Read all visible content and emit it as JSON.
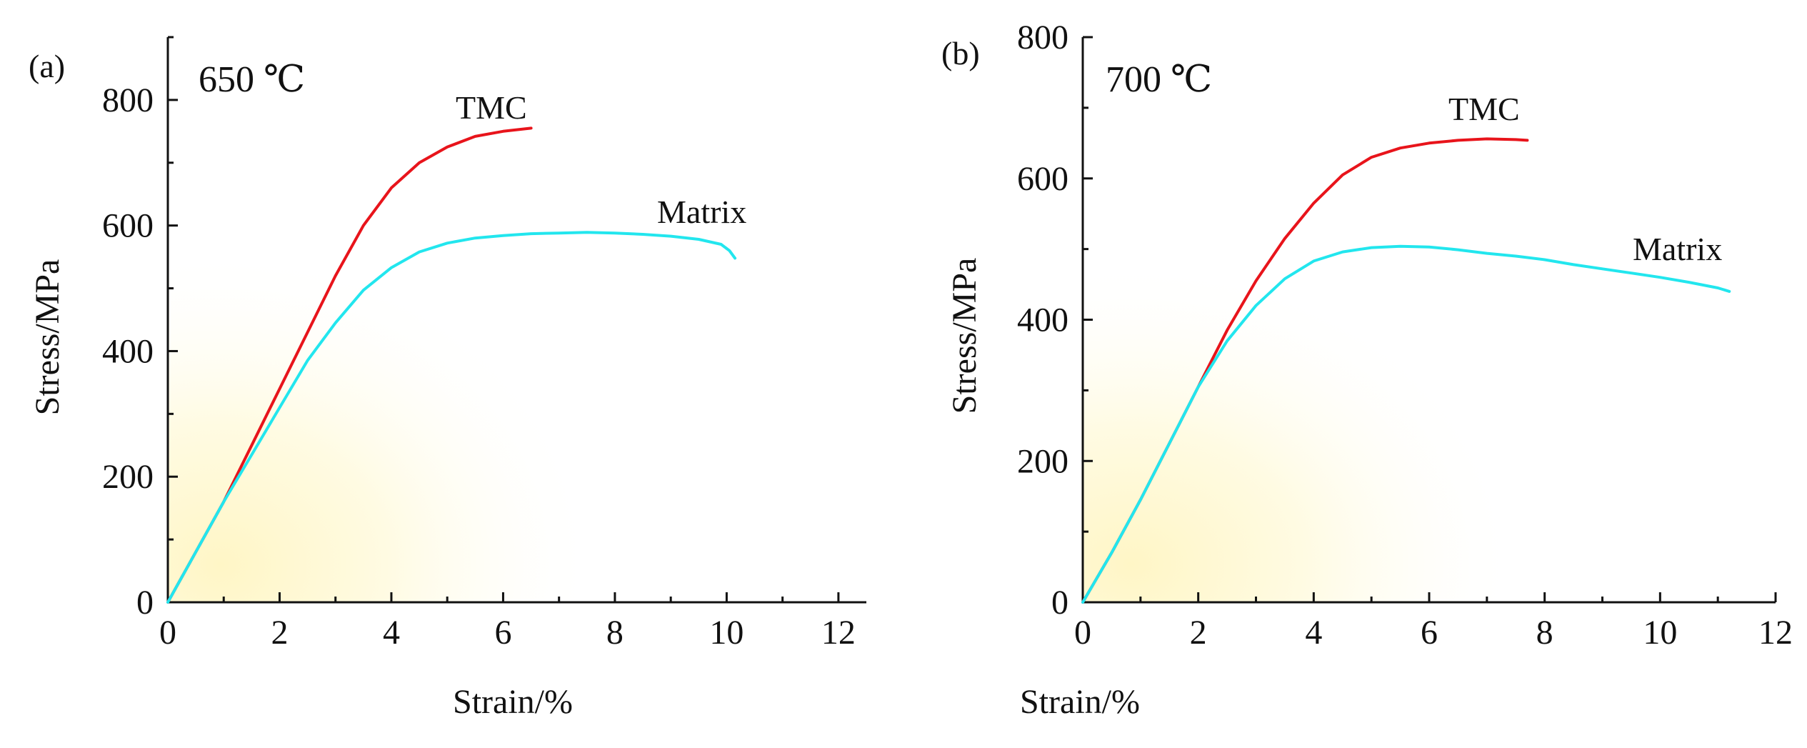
{
  "chart_data": [
    {
      "type": "line",
      "panel": "(a)",
      "annotation": "650 ℃",
      "xlabel": "Strain/%",
      "ylabel": "Stress/MPa",
      "xlim": [
        0,
        12.5
      ],
      "ylim": [
        0,
        900
      ],
      "xticks": [
        0,
        2,
        4,
        6,
        8,
        10,
        12
      ],
      "yticks": [
        0,
        200,
        400,
        600,
        800
      ],
      "series": [
        {
          "name": "TMC",
          "color": "#e8141b",
          "points": [
            [
              0,
              0
            ],
            [
              0.5,
              80
            ],
            [
              1.0,
              160
            ],
            [
              1.5,
              250
            ],
            [
              2.0,
              340
            ],
            [
              2.5,
              430
            ],
            [
              3.0,
              520
            ],
            [
              3.5,
              600
            ],
            [
              4.0,
              660
            ],
            [
              4.5,
              700
            ],
            [
              5.0,
              725
            ],
            [
              5.5,
              742
            ],
            [
              6.0,
              750
            ],
            [
              6.5,
              755
            ]
          ]
        },
        {
          "name": "Matrix",
          "color": "#22e6ee",
          "points": [
            [
              0,
              0
            ],
            [
              0.5,
              80
            ],
            [
              1.0,
              160
            ],
            [
              1.5,
              235
            ],
            [
              2.0,
              310
            ],
            [
              2.5,
              385
            ],
            [
              3.0,
              445
            ],
            [
              3.5,
              497
            ],
            [
              4.0,
              533
            ],
            [
              4.5,
              558
            ],
            [
              5.0,
              572
            ],
            [
              5.5,
              580
            ],
            [
              6.0,
              584
            ],
            [
              6.5,
              587
            ],
            [
              7.0,
              588
            ],
            [
              7.5,
              589
            ],
            [
              8.0,
              588
            ],
            [
              8.5,
              586
            ],
            [
              9.0,
              583
            ],
            [
              9.5,
              578
            ],
            [
              9.9,
              570
            ],
            [
              10.05,
              560
            ],
            [
              10.15,
              548
            ]
          ]
        }
      ]
    },
    {
      "type": "line",
      "panel": "(b)",
      "annotation": "700 ℃",
      "xlabel": "Strain/%",
      "ylabel": "Stress/MPa",
      "xlim": [
        0,
        12
      ],
      "ylim": [
        0,
        800
      ],
      "xticks": [
        0,
        2,
        4,
        6,
        8,
        10,
        12
      ],
      "yticks": [
        0,
        200,
        400,
        600,
        800
      ],
      "series": [
        {
          "name": "TMC",
          "color": "#e8141b",
          "points": [
            [
              0,
              0
            ],
            [
              0.5,
              70
            ],
            [
              1.0,
              145
            ],
            [
              1.5,
              225
            ],
            [
              2.0,
              305
            ],
            [
              2.5,
              385
            ],
            [
              3.0,
              455
            ],
            [
              3.5,
              515
            ],
            [
              4.0,
              565
            ],
            [
              4.5,
              605
            ],
            [
              5.0,
              630
            ],
            [
              5.5,
              643
            ],
            [
              6.0,
              650
            ],
            [
              6.5,
              654
            ],
            [
              7.0,
              656
            ],
            [
              7.5,
              655
            ],
            [
              7.7,
              654
            ]
          ]
        },
        {
          "name": "Matrix",
          "color": "#22e6ee",
          "points": [
            [
              0,
              0
            ],
            [
              0.5,
              70
            ],
            [
              1.0,
              145
            ],
            [
              1.5,
              225
            ],
            [
              2.0,
              305
            ],
            [
              2.5,
              370
            ],
            [
              3.0,
              420
            ],
            [
              3.5,
              458
            ],
            [
              4.0,
              483
            ],
            [
              4.5,
              496
            ],
            [
              5.0,
              502
            ],
            [
              5.5,
              504
            ],
            [
              6.0,
              503
            ],
            [
              6.5,
              499
            ],
            [
              7.0,
              494
            ],
            [
              7.5,
              490
            ],
            [
              8.0,
              485
            ],
            [
              8.5,
              478
            ],
            [
              9.0,
              472
            ],
            [
              9.5,
              466
            ],
            [
              10.0,
              460
            ],
            [
              10.5,
              453
            ],
            [
              11.0,
              445
            ],
            [
              11.2,
              440
            ]
          ]
        }
      ]
    }
  ]
}
